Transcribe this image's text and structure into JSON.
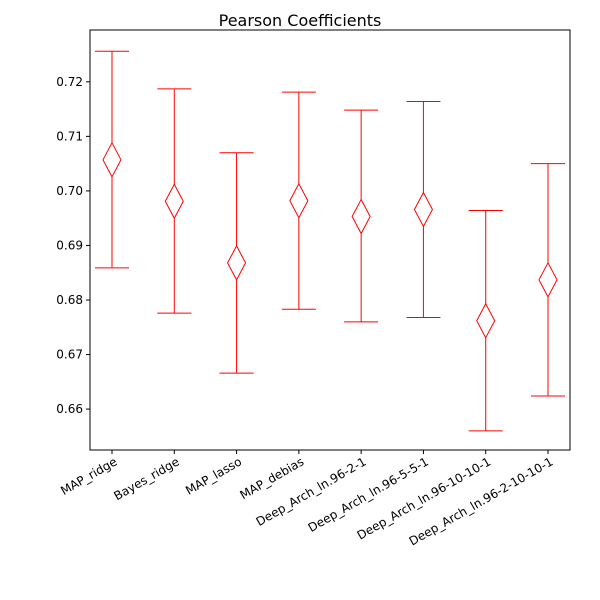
{
  "chart_data": {
    "type": "scatter",
    "title": "Pearson Coefficients",
    "xlabel": "",
    "ylabel": "",
    "ylim": [
      0.6525,
      0.7295
    ],
    "yticks": [
      0.66,
      0.67,
      0.68,
      0.69,
      0.7,
      0.71,
      0.72
    ],
    "ytick_labels": [
      "0.66",
      "0.67",
      "0.68",
      "0.69",
      "0.70",
      "0.71",
      "0.72"
    ],
    "grid": false,
    "marker": "thin-diamond",
    "color": "#ff0000",
    "categories": [
      "MAP_ridge",
      "Bayes_ridge",
      "MAP_lasso",
      "MAP_debias",
      "Deep_Arch_ln.96-2-1",
      "Deep_Arch_ln.96-5-5-1",
      "Deep_Arch_ln.96-10-10-1",
      "Deep_Arch_ln.96-2-10-10-1"
    ],
    "series": [
      {
        "values": [
          0.7057,
          0.6981,
          0.6868,
          0.6982,
          0.6953,
          0.6966,
          0.6762,
          0.6837
        ],
        "lower": [
          0.6859,
          0.6776,
          0.6666,
          0.6783,
          0.676,
          0.6768,
          0.656,
          0.6624
        ],
        "upper": [
          0.7256,
          0.7187,
          0.707,
          0.7181,
          0.7148,
          0.7164,
          0.6964,
          0.705
        ]
      }
    ]
  }
}
